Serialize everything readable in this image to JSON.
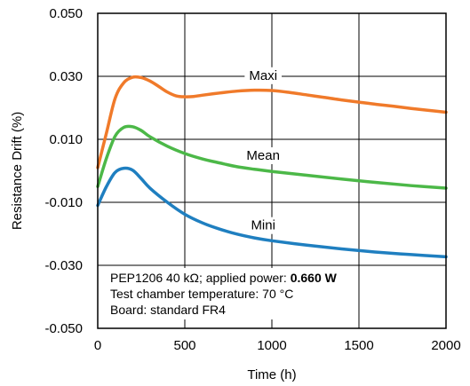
{
  "chart_data": {
    "type": "line",
    "xlabel": "Time (h)",
    "ylabel": "Resistance Drift (%)",
    "xlim": [
      0,
      2000
    ],
    "ylim": [
      -0.05,
      0.05
    ],
    "x_ticks": [
      "0",
      "500",
      "1000",
      "1500",
      "2000"
    ],
    "y_ticks": [
      "-0.050",
      "-0.030",
      "-0.010",
      "0.010",
      "0.030",
      "0.050"
    ],
    "grid": true,
    "series": [
      {
        "name": "Maxi",
        "color": "#F07A2A",
        "x": [
          0,
          50,
          100,
          150,
          200,
          250,
          300,
          350,
          400,
          450,
          500,
          550,
          600,
          700,
          800,
          900,
          1000,
          1100,
          1200,
          1300,
          1400,
          1500,
          1600,
          1700,
          1800,
          1900,
          2000
        ],
        "y": [
          0.001,
          0.012,
          0.023,
          0.028,
          0.0297,
          0.0296,
          0.0285,
          0.0268,
          0.025,
          0.0238,
          0.0235,
          0.0236,
          0.024,
          0.0247,
          0.0253,
          0.0256,
          0.0255,
          0.0249,
          0.0241,
          0.0233,
          0.0225,
          0.0218,
          0.0211,
          0.0205,
          0.0198,
          0.0192,
          0.0186
        ]
      },
      {
        "name": "Mean",
        "color": "#4CB848",
        "x": [
          0,
          50,
          100,
          150,
          200,
          250,
          300,
          400,
          500,
          600,
          700,
          800,
          900,
          1000,
          1200,
          1400,
          1600,
          1800,
          2000
        ],
        "y": [
          -0.005,
          0.004,
          0.011,
          0.0138,
          0.014,
          0.0128,
          0.0108,
          0.0078,
          0.0055,
          0.0038,
          0.0025,
          0.0013,
          0.0005,
          -0.0002,
          -0.0014,
          -0.0026,
          -0.0037,
          -0.0047,
          -0.0055
        ]
      },
      {
        "name": "Mini",
        "color": "#1F7FC0",
        "x": [
          0,
          50,
          100,
          150,
          200,
          250,
          300,
          400,
          500,
          600,
          700,
          800,
          900,
          1000,
          1200,
          1400,
          1600,
          1800,
          2000
        ],
        "y": [
          -0.011,
          -0.005,
          -0.0005,
          0.0008,
          0.0002,
          -0.0025,
          -0.0055,
          -0.01,
          -0.0138,
          -0.0165,
          -0.0185,
          -0.0201,
          -0.0213,
          -0.0222,
          -0.0236,
          -0.0248,
          -0.0258,
          -0.0266,
          -0.0273
        ]
      }
    ],
    "annotations": {
      "line1_text": "PEP1206 40 kΩ; applied power: ",
      "line1_bold": "0.660 W",
      "line2": "Test chamber temperature: 70 °C",
      "line3": "Board: standard FR4"
    }
  }
}
